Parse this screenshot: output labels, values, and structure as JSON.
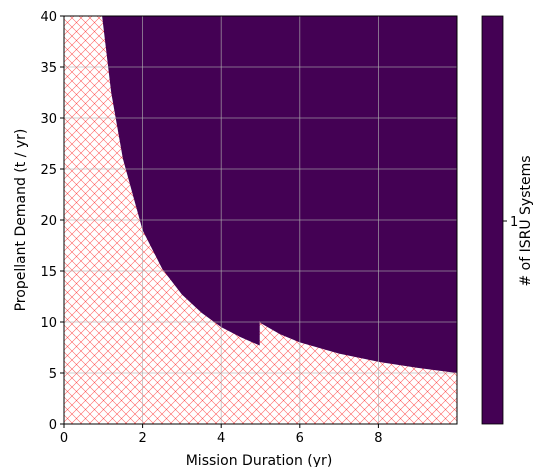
{
  "chart_data": {
    "type": "heatmap",
    "title": "",
    "xlabel": "Mission Duration (yr)",
    "ylabel": "Propellant Demand (t / yr)",
    "xlim": [
      0,
      10
    ],
    "ylim": [
      0,
      40
    ],
    "x_ticks": [
      0,
      2,
      4,
      6,
      8
    ],
    "y_ticks": [
      0,
      5,
      10,
      15,
      20,
      25,
      30,
      35,
      40
    ],
    "grid": true,
    "fill_color": "#440154",
    "infeasible_hatch_color": "#ff0000",
    "feasibility_boundary": {
      "description": "Region above boundary uses 1 ISRU system; region below is hatched (0 systems)",
      "x": [
        0.97,
        1.2,
        1.5,
        2.0,
        2.5,
        3.0,
        3.5,
        4.0,
        4.5,
        4.98,
        4.98,
        5.0,
        5.5,
        6.0,
        7.0,
        8.0,
        9.0,
        10.0
      ],
      "y": [
        40.0,
        32.5,
        26.0,
        19.0,
        15.2,
        12.7,
        10.9,
        9.5,
        8.5,
        7.7,
        10.1,
        9.9,
        8.8,
        8.0,
        6.9,
        6.1,
        5.5,
        5.0
      ]
    },
    "colorbar": {
      "label": "# of ISRU Systems",
      "ticks": [
        "1"
      ],
      "color": "#440154"
    }
  }
}
